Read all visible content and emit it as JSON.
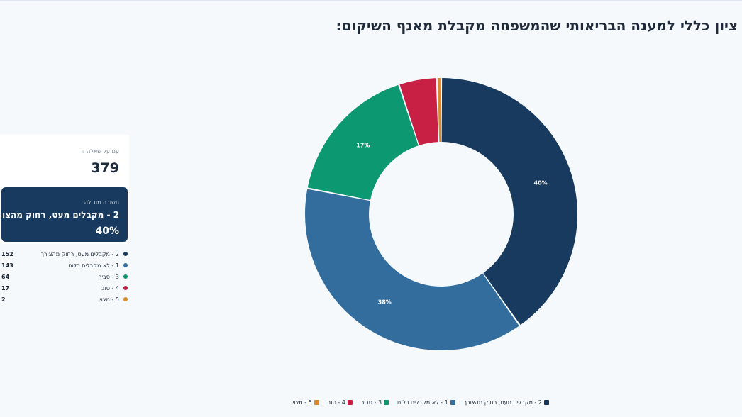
{
  "title": "ציון כללי למענה הבריאותי שהמשפחה מקבלת מאגף השיקום:",
  "summary": {
    "answered_label": "ענו על שאלה זו",
    "answered_count": "379",
    "leading_caption": "תשובה מובילה",
    "leading_answer": "2 - מקבלים מעט, רחוק מהצורך",
    "leading_percent": "40%"
  },
  "chart_data": {
    "type": "pie",
    "donut": true,
    "title": "ציון כללי למענה הבריאותי שהמשפחה מקבלת מאגף השיקום:",
    "categories": [
      "2 - מקבלים מעט, רחוק מהצורך",
      "1 - לא מקבלים כלום",
      "3 - סביר",
      "4 - טוב",
      "5 - מצוין"
    ],
    "values": [
      152,
      143,
      64,
      17,
      2
    ],
    "percent_labels": [
      "40%",
      "38%",
      "17%",
      "",
      ""
    ],
    "colors": [
      "#173a5e",
      "#326d9e",
      "#0c9870",
      "#c81f44",
      "#d98a2a"
    ],
    "legend_position": "bottom"
  },
  "side_legend": [
    {
      "label": "2 - מקבלים מעט, רחוק מהצורך",
      "count": "152",
      "color": "#173a5e"
    },
    {
      "label": "1 - לא מקבלים כלום",
      "count": "143",
      "color": "#326d9e"
    },
    {
      "label": "3 - סביר",
      "count": "64",
      "color": "#0c9870"
    },
    {
      "label": "4 - טוב",
      "count": "17",
      "color": "#c81f44"
    },
    {
      "label": "5 - מצוין",
      "count": "2",
      "color": "#d98a2a"
    }
  ]
}
